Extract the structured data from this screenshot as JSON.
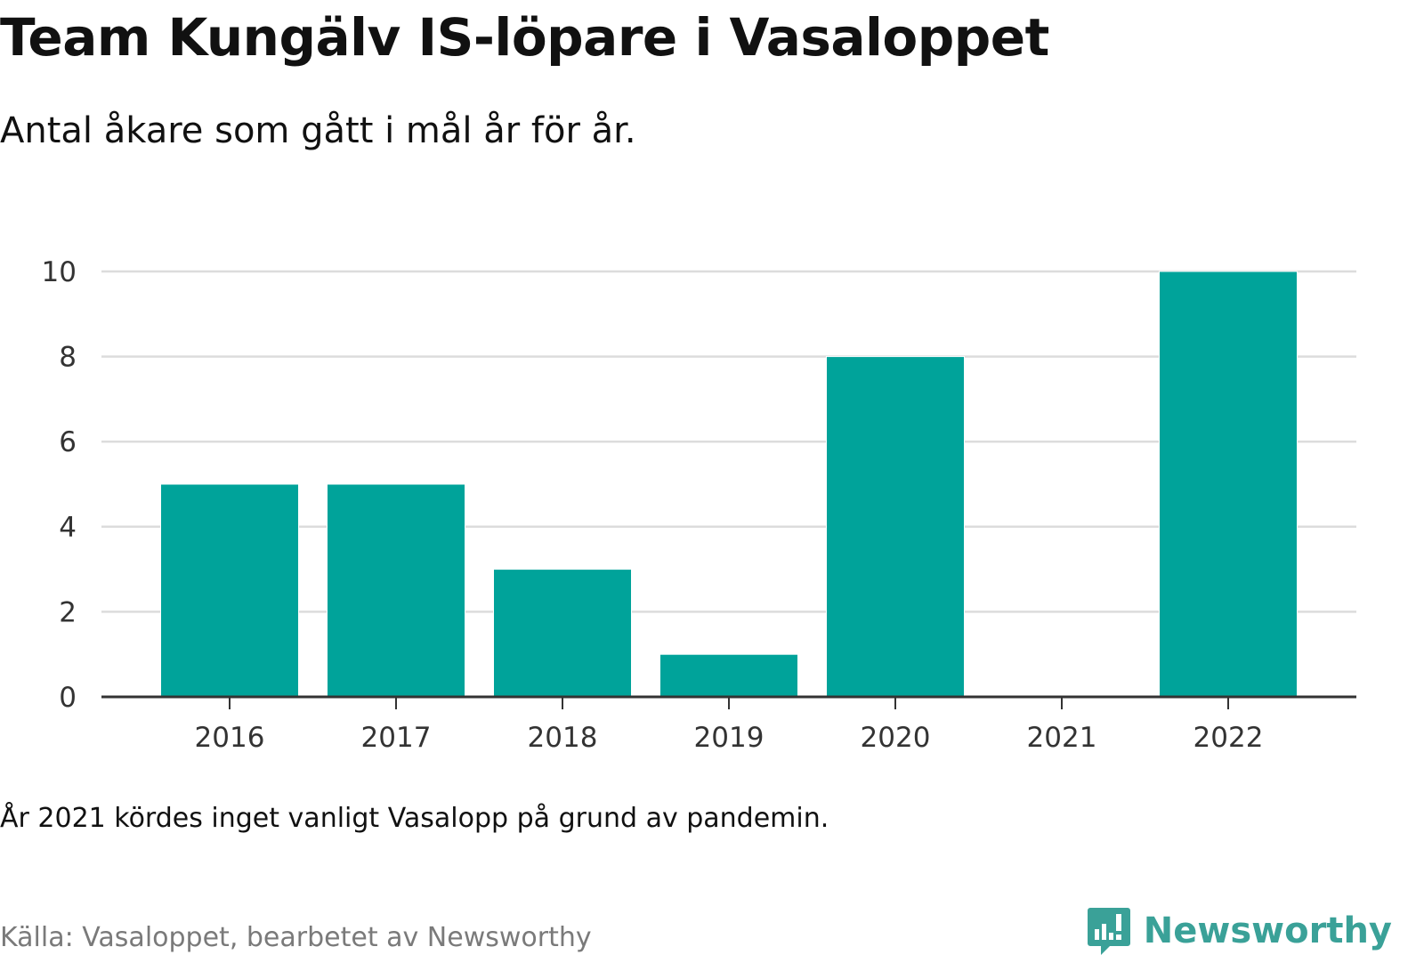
{
  "header": {
    "title": "Team Kungälv IS-löpare i Vasaloppet",
    "subtitle": "Antal åkare som gått i mål år för år."
  },
  "footer": {
    "note": "År 2021 kördes inget vanligt Vasalopp på grund av pandemin.",
    "source": "Källa: Vasaloppet, bearbetet av Newsworthy",
    "brand_name": "Newsworthy",
    "brand_icon": "bar-chart-speech-bubble-icon"
  },
  "colors": {
    "bar": "#00a39a",
    "brand": "#3aa198",
    "grid": "#dcdcdc",
    "axis": "#333333",
    "tick_text": "#333333"
  },
  "chart_data": {
    "type": "bar",
    "title": "Team Kungälv IS-löpare i Vasaloppet",
    "subtitle": "Antal åkare som gått i mål år för år.",
    "xlabel": "",
    "ylabel": "",
    "categories": [
      "2016",
      "2017",
      "2018",
      "2019",
      "2020",
      "2021",
      "2022"
    ],
    "values": [
      5,
      5,
      3,
      1,
      8,
      0,
      10
    ],
    "ylim": [
      0,
      10
    ],
    "yticks": [
      0,
      2,
      4,
      6,
      8,
      10
    ],
    "grid": true,
    "legend": "none"
  }
}
